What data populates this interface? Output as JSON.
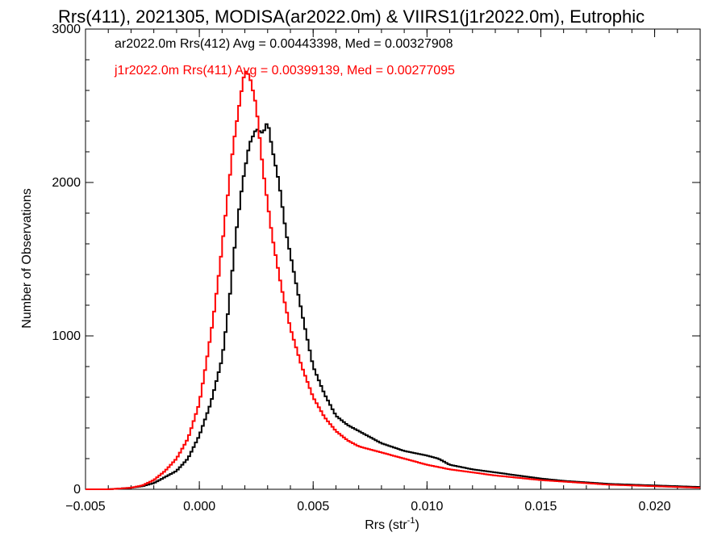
{
  "chart_data": {
    "type": "line",
    "title": "Rrs(411), 2021305, MODISA(ar2022.0m) & VIIRS1(j1r2022.0m), Eutrophic",
    "xlabel": "Rrs (str",
    "xlabel_sup": "-1",
    "xlabel_close": ")",
    "ylabel": "Number of Observations",
    "xlim": [
      -0.005,
      0.022
    ],
    "ylim": [
      0,
      3000
    ],
    "x_ticks": [
      -0.005,
      0.0,
      0.005,
      0.01,
      0.015,
      0.02
    ],
    "x_tick_labels": [
      "−0.005",
      "0.000",
      "0.005",
      "0.010",
      "0.015",
      "0.020"
    ],
    "y_ticks": [
      0,
      1000,
      2000,
      3000
    ],
    "y_tick_labels": [
      "0",
      "1000",
      "2000",
      "3000"
    ],
    "grid": false,
    "legend_placement": "top-left",
    "series": [
      {
        "name": "ar2022.0m Rrs(412)",
        "label": "ar2022.0m Rrs(412) Avg = 0.00443398, Med = 0.00327908",
        "color": "#000000",
        "x": [
          -0.005,
          -0.004,
          -0.003,
          -0.0025,
          -0.002,
          -0.0015,
          -0.001,
          -0.0005,
          0.0,
          0.0005,
          0.001,
          0.0013,
          0.0016,
          0.0019,
          0.0022,
          0.0025,
          0.0028,
          0.003,
          0.0032,
          0.0035,
          0.0038,
          0.0042,
          0.0046,
          0.005,
          0.0055,
          0.006,
          0.0065,
          0.007,
          0.008,
          0.009,
          0.01,
          0.0105,
          0.011,
          0.012,
          0.013,
          0.014,
          0.015,
          0.016,
          0.017,
          0.018,
          0.019,
          0.02,
          0.021,
          0.022
        ],
        "y": [
          0,
          0,
          10,
          20,
          40,
          80,
          120,
          200,
          350,
          560,
          850,
          1200,
          1650,
          2000,
          2250,
          2350,
          2320,
          2400,
          2220,
          2000,
          1680,
          1380,
          1080,
          800,
          620,
          480,
          420,
          380,
          300,
          250,
          220,
          200,
          160,
          130,
          110,
          90,
          70,
          55,
          45,
          35,
          30,
          25,
          20,
          15
        ]
      },
      {
        "name": "j1r2022.0m Rrs(411)",
        "label": "j1r2022.0m Rrs(411) Avg = 0.00399139, Med = 0.00277095",
        "color": "#ff0000",
        "x": [
          -0.005,
          -0.004,
          -0.003,
          -0.0025,
          -0.002,
          -0.0015,
          -0.001,
          -0.0005,
          0.0,
          0.0003,
          0.0006,
          0.0009,
          0.0012,
          0.0015,
          0.0018,
          0.002,
          0.0022,
          0.0025,
          0.0028,
          0.0032,
          0.0036,
          0.004,
          0.0045,
          0.005,
          0.0055,
          0.006,
          0.0065,
          0.007,
          0.008,
          0.009,
          0.01,
          0.011,
          0.012,
          0.013,
          0.014,
          0.015,
          0.016,
          0.017,
          0.018,
          0.019,
          0.02,
          0.021,
          0.022
        ],
        "y": [
          0,
          0,
          10,
          25,
          60,
          120,
          200,
          330,
          560,
          820,
          1100,
          1450,
          1850,
          2250,
          2550,
          2730,
          2700,
          2500,
          2080,
          1650,
          1320,
          1050,
          800,
          600,
          470,
          380,
          320,
          280,
          240,
          200,
          160,
          130,
          110,
          90,
          75,
          60,
          50,
          40,
          30,
          25,
          20,
          15,
          10
        ]
      }
    ]
  }
}
